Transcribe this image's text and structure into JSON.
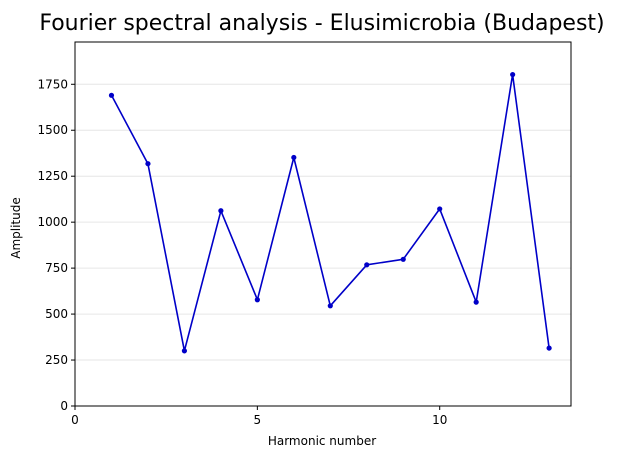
{
  "chart_data": {
    "type": "line",
    "title": "Fourier spectral analysis - Elusimicrobia (Budapest)",
    "xlabel": "Harmonic number",
    "ylabel": "Amplitude",
    "xlim": [
      0,
      13.6
    ],
    "ylim": [
      0,
      1980
    ],
    "xticks": [
      0,
      5,
      10
    ],
    "yticks": [
      0,
      250,
      500,
      750,
      1000,
      1250,
      1500,
      1750
    ],
    "grid": "horizontal",
    "series_color": "#0000c8",
    "x": [
      1,
      2,
      3,
      4,
      5,
      6,
      7,
      8,
      9,
      10,
      11,
      12,
      13
    ],
    "values": [
      1690,
      1318,
      300,
      1062,
      578,
      1352,
      545,
      768,
      798,
      1072,
      565,
      1803,
      315
    ]
  }
}
